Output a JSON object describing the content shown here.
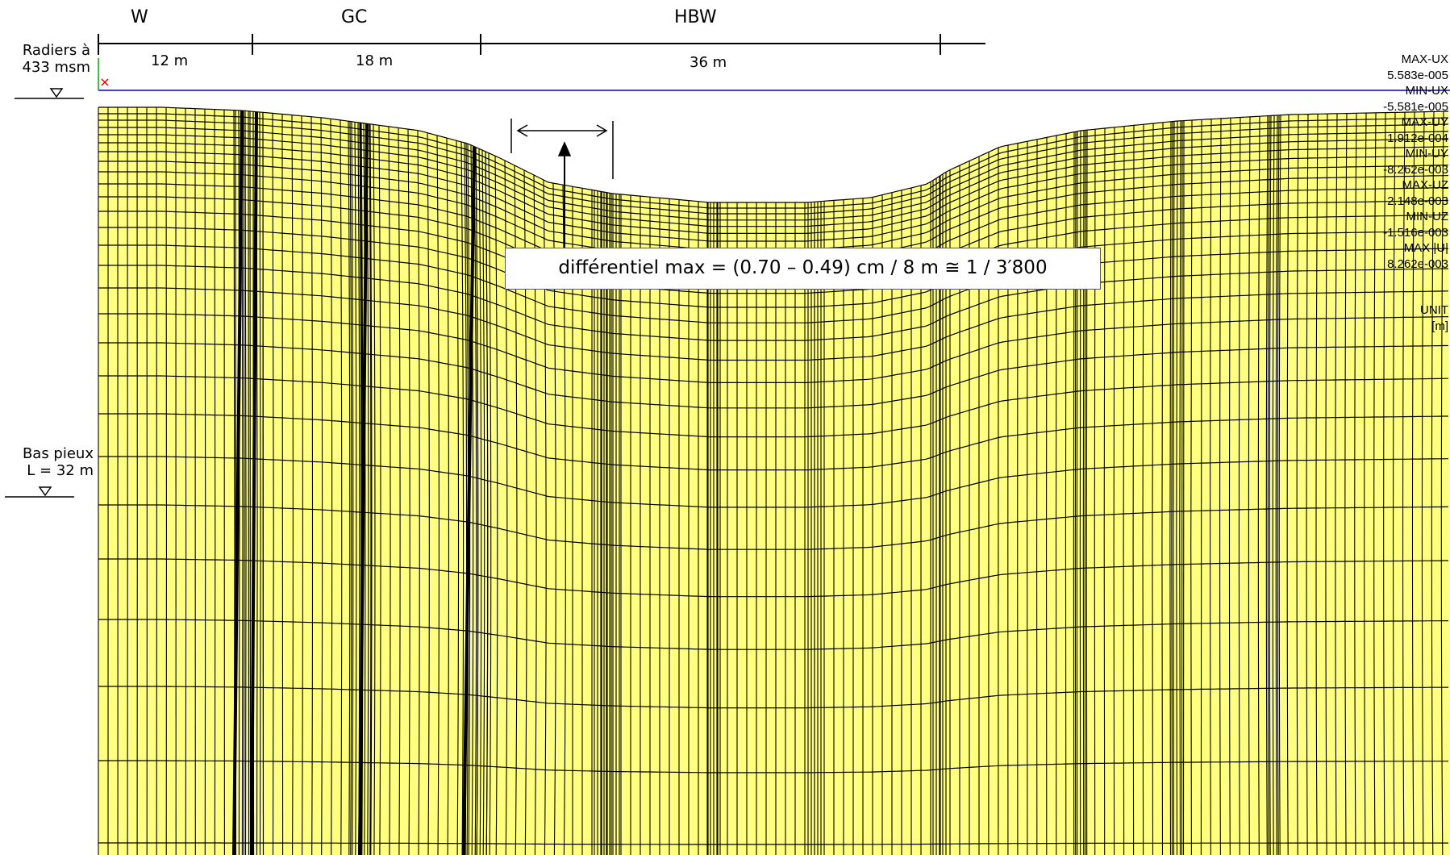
{
  "segments": [
    {
      "name": "W",
      "length": "12 m"
    },
    {
      "name": "GC",
      "length": "18 m"
    },
    {
      "name": "HBW",
      "length": "36 m"
    }
  ],
  "raft_label": {
    "line1": "Radiers à",
    "line2": "433 msm"
  },
  "pile_label": {
    "line1": "Bas pieux",
    "line2": "L = 32 m"
  },
  "callout": "différentiel max = (0.70 – 0.49) cm / 8 m ≅ 1 / 3′800",
  "legend": [
    "MAX-UX",
    "5.583e-005",
    "MIN-UX",
    "-5.581e-005",
    "MAX-UY",
    "1.912e-004",
    "MIN-UY",
    "-8.262e-003",
    "MAX-UZ",
    "2.148e-003",
    "MIN-UZ",
    "-1.516e-003",
    "MAX |U|",
    "8.262e-003",
    "UNIT",
    "[m]"
  ],
  "colors": {
    "mesh_fill": "#ffff80",
    "mesh_lines": "#000000",
    "reference_line": "#0000cc"
  }
}
